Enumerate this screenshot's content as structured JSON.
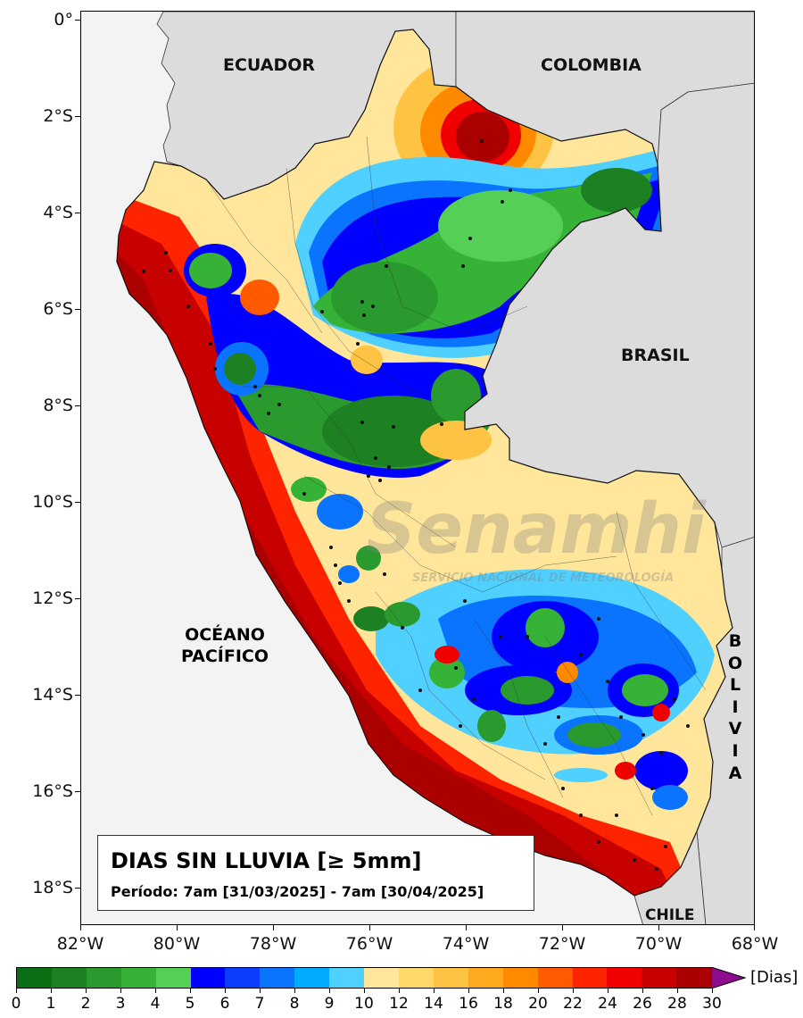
{
  "map": {
    "title": "DIAS SIN LLUVIA [≥ 5mm]",
    "period": "Período: 7am [31/03/2025] - 7am [30/04/2025]",
    "lat_ticks": [
      "0°",
      "2°S",
      "4°S",
      "6°S",
      "8°S",
      "10°S",
      "12°S",
      "14°S",
      "16°S",
      "18°S"
    ],
    "lon_ticks": [
      "82°W",
      "80°W",
      "78°W",
      "76°W",
      "74°W",
      "72°W",
      "70°W",
      "68°W"
    ],
    "labels": {
      "ecuador": "ECUADOR",
      "colombia": "COLOMBIA",
      "brasil": "BRASIL",
      "bolivia": [
        "B",
        "O",
        "L",
        "I",
        "V",
        "I",
        "A"
      ],
      "ocean_line1": "OCÉANO",
      "ocean_line2": "PACÍFICO",
      "chile": "CHILE"
    },
    "watermark": "Senamhi",
    "watermark_sub": "SERVICIO NACIONAL DE METEOROLOGÍA",
    "colors": {
      "land_neighbors": "#dcdcdc",
      "ocean": "#f3f3f3",
      "extend_arrow": "#8e0c8e"
    }
  },
  "colorbar": {
    "unit": "[Dias]",
    "tick_labels": [
      "0",
      "1",
      "2",
      "3",
      "4",
      "5",
      "6",
      "7",
      "8",
      "9",
      "10",
      "12",
      "14",
      "16",
      "18",
      "20",
      "22",
      "24",
      "26",
      "28",
      "30"
    ],
    "colors": [
      "#0c6e14",
      "#1d8023",
      "#2a9a2e",
      "#36b336",
      "#55cf55",
      "#0000ff",
      "#0a3dff",
      "#0a74ff",
      "#00aaff",
      "#4fd0ff",
      "#ffe69a",
      "#ffd86a",
      "#ffc343",
      "#ffa91f",
      "#ff8a00",
      "#ff5a00",
      "#ff2400",
      "#f00000",
      "#c70000",
      "#ab0000"
    ]
  }
}
